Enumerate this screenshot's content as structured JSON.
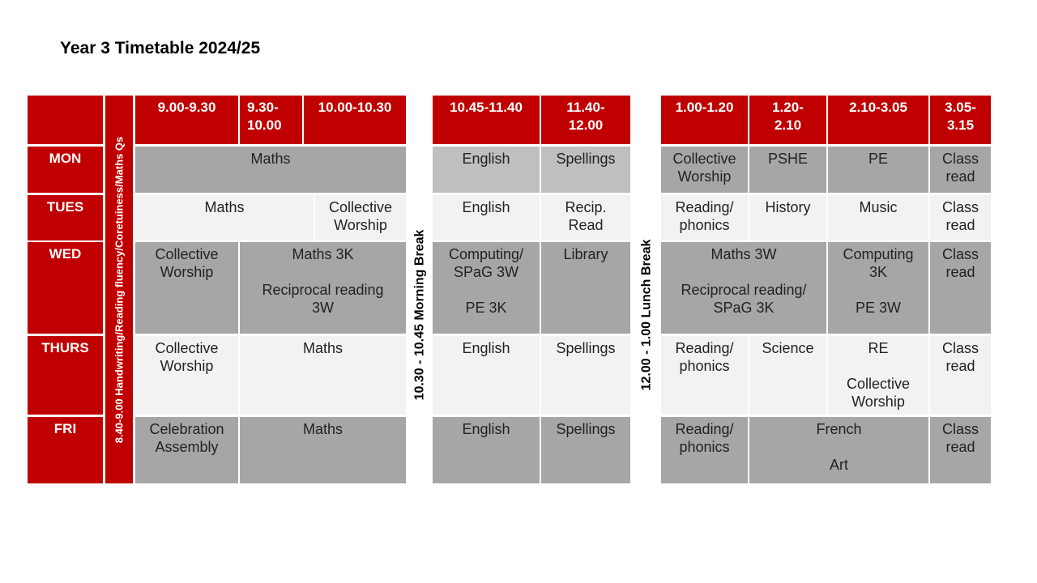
{
  "title": "Year 3 Timetable 2024/25",
  "colors": {
    "header_red": "#c00000",
    "dark_grey": "#a6a6a6",
    "light_grey": "#f2f2f2",
    "mid_grey": "#bfbfbf"
  },
  "times": {
    "t1": "9.00-9.30",
    "t2": "9.30-\n10.00",
    "t3": "10.00-10.30",
    "t4": "10.45-11.40",
    "t5": "11.40-\n12.00",
    "t6": "1.00-1.20",
    "t7": "1.20-\n2.10",
    "t8": "2.10-3.05",
    "t9": "3.05-\n3.15"
  },
  "vertical": {
    "early": "8.40-9.00 Handwriting/Reading fluency/Coretuiness/Maths Qs",
    "morning_break": "10.30 - 10.45 Morning Break",
    "lunch_break": "12.00 - 1.00 Lunch Break"
  },
  "days": {
    "mon": "MON",
    "tues": "TUES",
    "wed": "WED",
    "thurs": "THURS",
    "fri": "FRI"
  },
  "mon": {
    "a": "Maths",
    "b": "English",
    "c": "Spellings",
    "d": "Collective\nWorship",
    "e": "PSHE",
    "f": "PE",
    "g": "Class\nread"
  },
  "tues": {
    "a": "Maths",
    "b": "Collective\nWorship",
    "c": "English",
    "d": "Recip.\nRead",
    "e": "Reading/\nphonics",
    "f": "History",
    "g": "Music",
    "h": "Class\nread"
  },
  "wed": {
    "a": "Collective\nWorship",
    "b": "Maths 3K\n\nReciprocal reading\n3W",
    "c": "Computing/\nSPaG 3W\n\nPE 3K",
    "d": "Library",
    "e": "Maths 3W\n\nReciprocal reading/\nSPaG 3K",
    "f": "Computing\n3K\n\nPE 3W",
    "g": "Class\nread"
  },
  "thurs": {
    "a": "Collective\nWorship",
    "b": "Maths",
    "c": "English",
    "d": "Spellings",
    "e": "Reading/\nphonics",
    "f": "Science",
    "g": "RE\n\nCollective\nWorship",
    "h": "Class\nread"
  },
  "fri": {
    "a": "Celebration\nAssembly",
    "b": "Maths",
    "c": "English",
    "d": "Spellings",
    "e": "Reading/\nphonics",
    "f": "French\n\nArt",
    "g": "Class\nread"
  }
}
